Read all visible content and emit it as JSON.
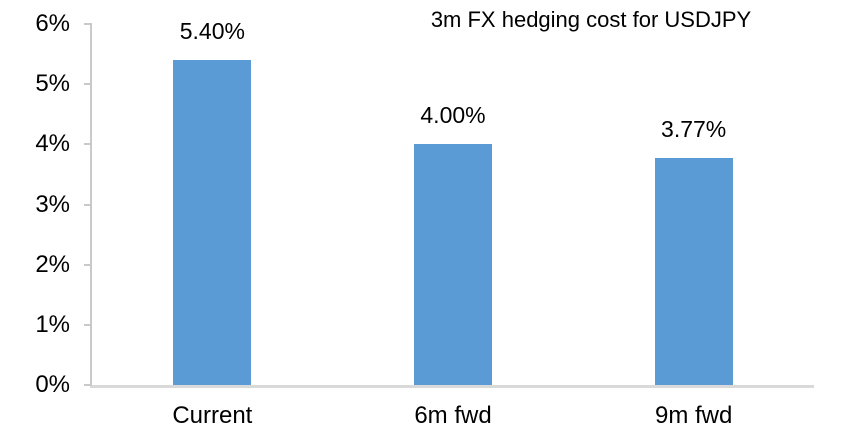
{
  "chart_data": {
    "type": "bar",
    "title": "3m FX hedging cost for USDJPY",
    "categories": [
      "Current",
      "6m fwd",
      "9m fwd"
    ],
    "values": [
      5.4,
      4.0,
      3.77
    ],
    "data_labels": [
      "5.40%",
      "4.00%",
      "3.77%"
    ],
    "xlabel": "",
    "ylabel": "",
    "ylim": [
      0,
      6
    ],
    "ytick_values": [
      0,
      1,
      2,
      3,
      4,
      5,
      6
    ],
    "ytick_labels": [
      "0%",
      "1%",
      "2%",
      "3%",
      "4%",
      "5%",
      "6%"
    ],
    "grid": "off",
    "legend": "none",
    "colors": {
      "bar": "#5B9BD5",
      "axis": "#C9C9C9",
      "baseline": "#D9D9D9",
      "text": "#000000",
      "background": "#FFFFFF"
    }
  }
}
